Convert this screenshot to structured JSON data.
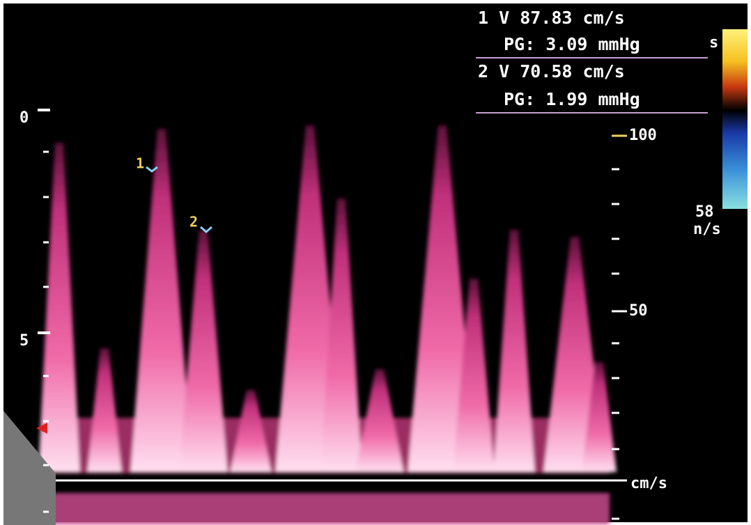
{
  "measurements": [
    {
      "velocity": "1 V 87.83 cm/s",
      "gradient": "PG: 3.09 mmHg"
    },
    {
      "velocity": "2 V 70.58 cm/s",
      "gradient": "PG: 1.99 mmHg"
    }
  ],
  "depth_scale": {
    "labels": [
      "0",
      "5"
    ]
  },
  "velocity_scale": {
    "labels": [
      "100",
      "50"
    ],
    "unit": "cm/s"
  },
  "cursor_markers": [
    "1",
    "2"
  ],
  "color_bar": {
    "fragments": [
      "s",
      "58",
      "n/s"
    ]
  }
}
